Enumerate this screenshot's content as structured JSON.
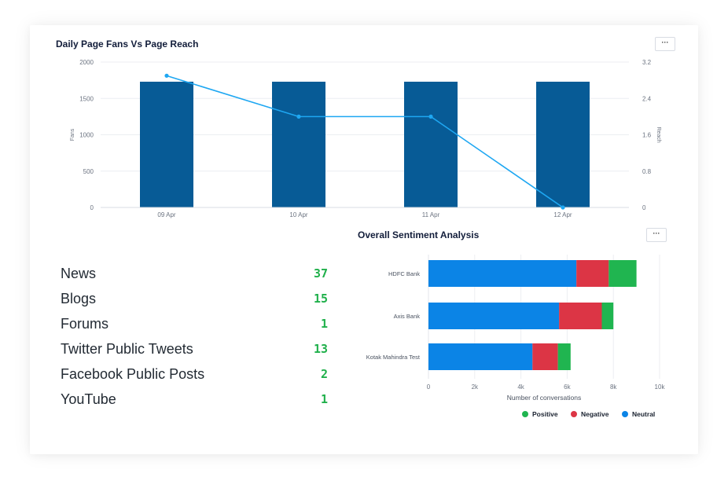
{
  "fans_reach": {
    "title": "Daily Page Fans Vs Page Reach",
    "menu_label": "···"
  },
  "sentiment": {
    "title": "Overall Sentiment Analysis",
    "menu_label": "···"
  },
  "sources": [
    {
      "name": "News",
      "count": "37"
    },
    {
      "name": "Blogs",
      "count": "15"
    },
    {
      "name": "Forums",
      "count": "1"
    },
    {
      "name": "Twitter Public Tweets",
      "count": "13"
    },
    {
      "name": "Facebook Public Posts",
      "count": "2"
    },
    {
      "name": "YouTube",
      "count": "1"
    }
  ],
  "chart_data": [
    {
      "type": "bar",
      "title": "Daily Page Fans Vs Page Reach",
      "categories": [
        "09 Apr",
        "10 Apr",
        "11 Apr",
        "12 Apr"
      ],
      "series": [
        {
          "name": "Fans",
          "type": "bar",
          "axis": "left",
          "values": [
            1730,
            1730,
            1730,
            1730
          ],
          "color": "#075b96"
        },
        {
          "name": "Reach",
          "type": "line",
          "axis": "right",
          "values": [
            2.9,
            2.0,
            2.0,
            0
          ],
          "color": "#1ea7f2"
        }
      ],
      "ylabel": "Fans",
      "ylabel_right": "Reach",
      "ylim": [
        0,
        2000
      ],
      "yticks": [
        "0",
        "500",
        "1000",
        "1500",
        "2000"
      ],
      "ylim_right": [
        0,
        3.2
      ],
      "yticks_right": [
        "0",
        "0.8",
        "1.6",
        "2.4",
        "3.2"
      ],
      "grid": true
    },
    {
      "type": "bar",
      "orientation": "horizontal",
      "stacked": true,
      "title": "Overall Sentiment Analysis",
      "categories": [
        "HDFC Bank",
        "Axis Bank",
        "Kotak Mahindra Test"
      ],
      "series": [
        {
          "name": "Neutral",
          "values": [
            6400,
            5650,
            4500
          ],
          "color": "#0b84e6"
        },
        {
          "name": "Negative",
          "values": [
            1400,
            1850,
            1100
          ],
          "color": "#dc3545"
        },
        {
          "name": "Positive",
          "values": [
            1200,
            500,
            550
          ],
          "color": "#20b550"
        }
      ],
      "xlabel": "Number of conversations",
      "xlim": [
        0,
        10000
      ],
      "xticks": [
        "0",
        "2k",
        "4k",
        "6k",
        "8k",
        "10k"
      ],
      "legend": [
        "Positive",
        "Negative",
        "Neutral"
      ],
      "legend_position": "bottom-right",
      "grid": true
    }
  ]
}
